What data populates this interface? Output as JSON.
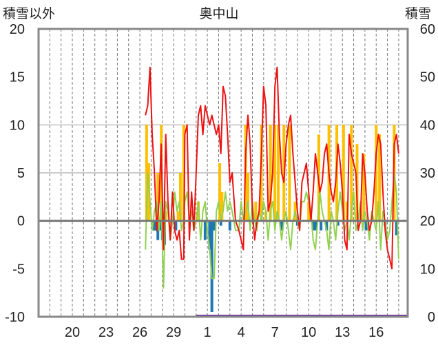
{
  "chart_data": {
    "type": "bar+line",
    "title": "奥中山",
    "left_axis_label": "積雪以外",
    "right_axis_label": "積雪",
    "left_ylim": [
      -10,
      20
    ],
    "right_ylim": [
      0,
      60
    ],
    "left_ticks": [
      "20",
      "15",
      "10",
      "5",
      "0",
      "-5",
      "-10"
    ],
    "right_ticks": [
      "60",
      "50",
      "40",
      "30",
      "20",
      "10",
      "0"
    ],
    "x_tick_labels": [
      "20",
      "23",
      "26",
      "29",
      "1",
      "4",
      "7",
      "10",
      "13",
      "16"
    ],
    "grid": "vertical dashed daily lines, horizontal at left-axis 10 and 5",
    "series": [
      {
        "key": "temp",
        "color": "#ee1111",
        "points": [
          [
            26.5,
            11
          ],
          [
            26.7,
            12
          ],
          [
            26.9,
            16
          ],
          [
            27.1,
            9
          ],
          [
            27.3,
            5
          ],
          [
            27.5,
            -1
          ],
          [
            27.7,
            2
          ],
          [
            27.9,
            8
          ],
          [
            28.1,
            -3
          ],
          [
            28.3,
            9
          ],
          [
            28.5,
            2
          ],
          [
            28.7,
            -2
          ],
          [
            28.9,
            3
          ],
          [
            29.1,
            -1
          ],
          [
            29.3,
            -2
          ],
          [
            29.5,
            -1
          ],
          [
            29.7,
            -4
          ],
          [
            29.9,
            -4
          ],
          [
            30.0,
            9
          ],
          [
            30.2,
            10
          ],
          [
            30.4,
            -2
          ],
          [
            30.6,
            3
          ],
          [
            30.8,
            -1
          ],
          [
            31.0,
            5
          ],
          [
            31.2,
            11
          ],
          [
            31.4,
            12
          ],
          [
            31.6,
            9
          ],
          [
            31.8,
            12
          ],
          [
            32.0,
            11
          ],
          [
            32.2,
            10
          ],
          [
            32.4,
            11
          ],
          [
            32.6,
            10
          ],
          [
            32.8,
            9
          ],
          [
            33.0,
            10
          ],
          [
            33.2,
            7
          ],
          [
            33.4,
            14
          ],
          [
            33.6,
            13
          ],
          [
            33.8,
            9
          ],
          [
            34.0,
            4
          ],
          [
            34.2,
            5
          ],
          [
            34.5,
            0
          ],
          [
            34.8,
            -1
          ],
          [
            35.0,
            -2
          ],
          [
            35.2,
            -3
          ],
          [
            35.4,
            7
          ],
          [
            35.6,
            11
          ],
          [
            35.8,
            8
          ],
          [
            36.0,
            1
          ],
          [
            36.2,
            -2
          ],
          [
            36.4,
            0
          ],
          [
            36.6,
            1
          ],
          [
            36.8,
            7
          ],
          [
            37.0,
            14
          ],
          [
            37.2,
            12
          ],
          [
            37.4,
            1
          ],
          [
            37.6,
            2
          ],
          [
            37.8,
            5
          ],
          [
            38.0,
            14
          ],
          [
            38.2,
            16
          ],
          [
            38.4,
            9
          ],
          [
            38.6,
            5
          ],
          [
            38.8,
            4
          ],
          [
            39.0,
            8
          ],
          [
            39.2,
            10
          ],
          [
            39.4,
            11
          ],
          [
            39.6,
            7
          ],
          [
            39.8,
            4
          ],
          [
            40.0,
            1
          ],
          [
            40.2,
            -1
          ],
          [
            40.4,
            4
          ],
          [
            40.6,
            5
          ],
          [
            40.8,
            6
          ],
          [
            41.0,
            3
          ],
          [
            41.2,
            0
          ],
          [
            41.4,
            3
          ],
          [
            41.6,
            7
          ],
          [
            41.8,
            5
          ],
          [
            42.0,
            3
          ],
          [
            42.2,
            4
          ],
          [
            42.4,
            7
          ],
          [
            42.6,
            8
          ],
          [
            42.8,
            5
          ],
          [
            43.0,
            3
          ],
          [
            43.2,
            2
          ],
          [
            43.4,
            4
          ],
          [
            43.6,
            8
          ],
          [
            43.8,
            6
          ],
          [
            44.0,
            3
          ],
          [
            44.2,
            -2
          ],
          [
            44.4,
            -3
          ],
          [
            44.6,
            9
          ],
          [
            44.8,
            7
          ],
          [
            45.0,
            6
          ],
          [
            45.2,
            5
          ],
          [
            45.4,
            -1
          ],
          [
            45.6,
            0
          ],
          [
            45.8,
            7
          ],
          [
            46.0,
            5
          ],
          [
            46.2,
            1
          ],
          [
            46.4,
            -1
          ],
          [
            46.6,
            0
          ],
          [
            46.8,
            3
          ],
          [
            47.0,
            7
          ],
          [
            47.2,
            9
          ],
          [
            47.4,
            8
          ],
          [
            47.6,
            3
          ],
          [
            47.8,
            -1
          ],
          [
            48.0,
            -3
          ],
          [
            48.2,
            -4
          ],
          [
            48.4,
            -5
          ],
          [
            48.6,
            8
          ],
          [
            48.8,
            9
          ],
          [
            49.0,
            7
          ]
        ]
      },
      {
        "key": "precip",
        "color": "#ffc000",
        "mark": "bars",
        "points": [
          [
            26.6,
            10
          ],
          [
            26.8,
            6
          ],
          [
            27.6,
            5
          ],
          [
            27.9,
            10
          ],
          [
            28.3,
            1
          ],
          [
            29.4,
            1
          ],
          [
            29.6,
            5
          ],
          [
            29.9,
            10
          ],
          [
            31.2,
            2
          ],
          [
            33.1,
            6
          ],
          [
            33.3,
            3
          ],
          [
            35.4,
            10
          ],
          [
            35.6,
            5
          ],
          [
            36.3,
            2
          ],
          [
            36.8,
            10
          ],
          [
            37.2,
            1
          ],
          [
            37.6,
            10
          ],
          [
            38.0,
            10
          ],
          [
            38.3,
            10
          ],
          [
            38.8,
            10
          ],
          [
            39.3,
            10
          ],
          [
            39.8,
            2
          ],
          [
            41.0,
            2
          ],
          [
            41.9,
            9
          ],
          [
            42.8,
            10
          ],
          [
            43.5,
            10
          ],
          [
            44.1,
            10
          ],
          [
            44.4,
            2
          ],
          [
            44.8,
            10
          ],
          [
            45.3,
            8
          ],
          [
            45.9,
            7
          ],
          [
            47.0,
            10
          ],
          [
            47.3,
            9
          ],
          [
            48.6,
            10
          ]
        ]
      },
      {
        "key": "snowfall",
        "color": "#1f77b4",
        "mark": "bars",
        "points": [
          [
            27.2,
            -1
          ],
          [
            27.4,
            -1
          ],
          [
            27.6,
            -2
          ],
          [
            27.8,
            -1
          ],
          [
            28.0,
            -2
          ],
          [
            28.2,
            -2.5
          ],
          [
            29.2,
            -1
          ],
          [
            31.8,
            -2
          ],
          [
            32.2,
            -3
          ],
          [
            32.4,
            -9.5
          ],
          [
            32.6,
            -1
          ],
          [
            33.2,
            -0.5
          ],
          [
            34.0,
            -1
          ],
          [
            38.6,
            -1
          ],
          [
            40.0,
            -0.5
          ],
          [
            41.4,
            -1
          ],
          [
            41.6,
            -1
          ],
          [
            42.1,
            -1
          ],
          [
            42.6,
            -1
          ],
          [
            43.6,
            -0.5
          ],
          [
            46.1,
            -1
          ],
          [
            47.8,
            -0.5
          ],
          [
            48.8,
            -1.5
          ]
        ]
      },
      {
        "key": "change",
        "color": "#92d050",
        "points": [
          [
            26.5,
            -3
          ],
          [
            26.7,
            5
          ],
          [
            26.9,
            2
          ],
          [
            27.1,
            -1
          ],
          [
            27.3,
            1
          ],
          [
            27.5,
            2
          ],
          [
            27.7,
            -1
          ],
          [
            27.9,
            2
          ],
          [
            28.1,
            -7
          ],
          [
            28.3,
            2
          ],
          [
            28.5,
            1
          ],
          [
            28.7,
            -2
          ],
          [
            28.9,
            0
          ],
          [
            29.1,
            3
          ],
          [
            29.3,
            1
          ],
          [
            29.5,
            2
          ],
          [
            29.7,
            -1
          ],
          [
            29.9,
            0
          ],
          [
            30.0,
            2
          ],
          [
            30.2,
            3
          ],
          [
            30.4,
            0
          ],
          [
            30.6,
            1
          ],
          [
            30.8,
            -1
          ],
          [
            31.0,
            0
          ],
          [
            31.2,
            2
          ],
          [
            31.4,
            -2
          ],
          [
            31.6,
            1
          ],
          [
            31.8,
            2
          ],
          [
            32.0,
            -1
          ],
          [
            32.2,
            -3
          ],
          [
            32.4,
            -6
          ],
          [
            32.6,
            -6
          ],
          [
            32.8,
            1
          ],
          [
            33.0,
            2
          ],
          [
            33.2,
            0
          ],
          [
            33.4,
            1
          ],
          [
            33.6,
            3
          ],
          [
            33.8,
            1
          ],
          [
            34.0,
            2
          ],
          [
            34.2,
            1
          ],
          [
            34.5,
            -1
          ],
          [
            34.8,
            -1
          ],
          [
            35.0,
            2
          ],
          [
            35.2,
            0
          ],
          [
            35.4,
            1
          ],
          [
            35.6,
            2
          ],
          [
            35.8,
            -1
          ],
          [
            36.0,
            2
          ],
          [
            36.2,
            0
          ],
          [
            36.4,
            -1
          ],
          [
            36.6,
            1
          ],
          [
            36.8,
            0
          ],
          [
            37.0,
            2
          ],
          [
            37.2,
            1
          ],
          [
            37.4,
            -2
          ],
          [
            37.6,
            1
          ],
          [
            37.8,
            2
          ],
          [
            38.0,
            -1
          ],
          [
            38.2,
            1
          ],
          [
            38.4,
            0
          ],
          [
            38.6,
            -2
          ],
          [
            38.8,
            0
          ],
          [
            39.0,
            1
          ],
          [
            39.2,
            -1
          ],
          [
            39.4,
            -3
          ],
          [
            39.6,
            0
          ],
          [
            39.8,
            1
          ],
          [
            40.0,
            0
          ],
          [
            40.2,
            -1
          ],
          [
            40.4,
            2
          ],
          [
            40.6,
            2
          ],
          [
            40.8,
            3
          ],
          [
            41.0,
            2
          ],
          [
            41.2,
            1
          ],
          [
            41.4,
            -2
          ],
          [
            41.6,
            -3
          ],
          [
            41.8,
            0
          ],
          [
            42.0,
            3
          ],
          [
            42.2,
            1
          ],
          [
            42.4,
            0
          ],
          [
            42.6,
            -1
          ],
          [
            42.8,
            -3
          ],
          [
            43.0,
            1
          ],
          [
            43.2,
            0
          ],
          [
            43.4,
            -2
          ],
          [
            43.6,
            1
          ],
          [
            43.8,
            3
          ],
          [
            44.0,
            1
          ],
          [
            44.2,
            -1
          ],
          [
            44.4,
            0
          ],
          [
            44.6,
            -2
          ],
          [
            44.8,
            1
          ],
          [
            45.0,
            3
          ],
          [
            45.2,
            -1
          ],
          [
            45.4,
            0
          ],
          [
            45.6,
            2
          ],
          [
            45.8,
            -1
          ],
          [
            46.0,
            1
          ],
          [
            46.2,
            0
          ],
          [
            46.4,
            -2
          ],
          [
            46.6,
            1
          ],
          [
            46.8,
            0
          ],
          [
            47.0,
            -1
          ],
          [
            47.2,
            2
          ],
          [
            47.4,
            -3
          ],
          [
            47.6,
            1
          ],
          [
            47.8,
            0
          ],
          [
            48.0,
            -2
          ],
          [
            48.2,
            -1
          ],
          [
            48.4,
            2
          ],
          [
            48.6,
            5
          ],
          [
            48.8,
            3
          ],
          [
            49.0,
            -4
          ]
        ]
      }
    ]
  }
}
